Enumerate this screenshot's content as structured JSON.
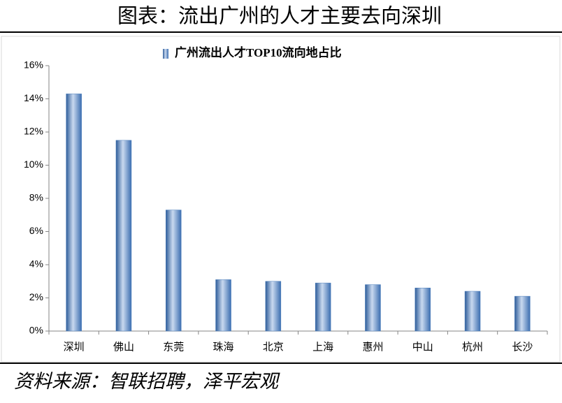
{
  "chart_data": {
    "type": "bar",
    "title": "图表：流出广州的人才主要去向深圳",
    "source": "资料来源：智联招聘，泽平宏观",
    "categories": [
      "深圳",
      "佛山",
      "东莞",
      "珠海",
      "北京",
      "上海",
      "惠州",
      "中山",
      "杭州",
      "长沙"
    ],
    "series": [
      {
        "name": "广州流出人才TOP10流向地占比",
        "color": "#4a7ebb",
        "values": [
          14.3,
          11.5,
          7.3,
          3.1,
          3.0,
          2.9,
          2.8,
          2.6,
          2.4,
          2.1
        ]
      }
    ],
    "ylim": [
      0,
      16
    ],
    "yticks": [
      {
        "value": 0,
        "label": "0%"
      },
      {
        "value": 2,
        "label": "2%"
      },
      {
        "value": 4,
        "label": "4%"
      },
      {
        "value": 6,
        "label": "6%"
      },
      {
        "value": 8,
        "label": "8%"
      },
      {
        "value": 10,
        "label": "10%"
      },
      {
        "value": 12,
        "label": "12%"
      },
      {
        "value": 14,
        "label": "14%"
      },
      {
        "value": 16,
        "label": "16%"
      }
    ],
    "legend": "top"
  }
}
